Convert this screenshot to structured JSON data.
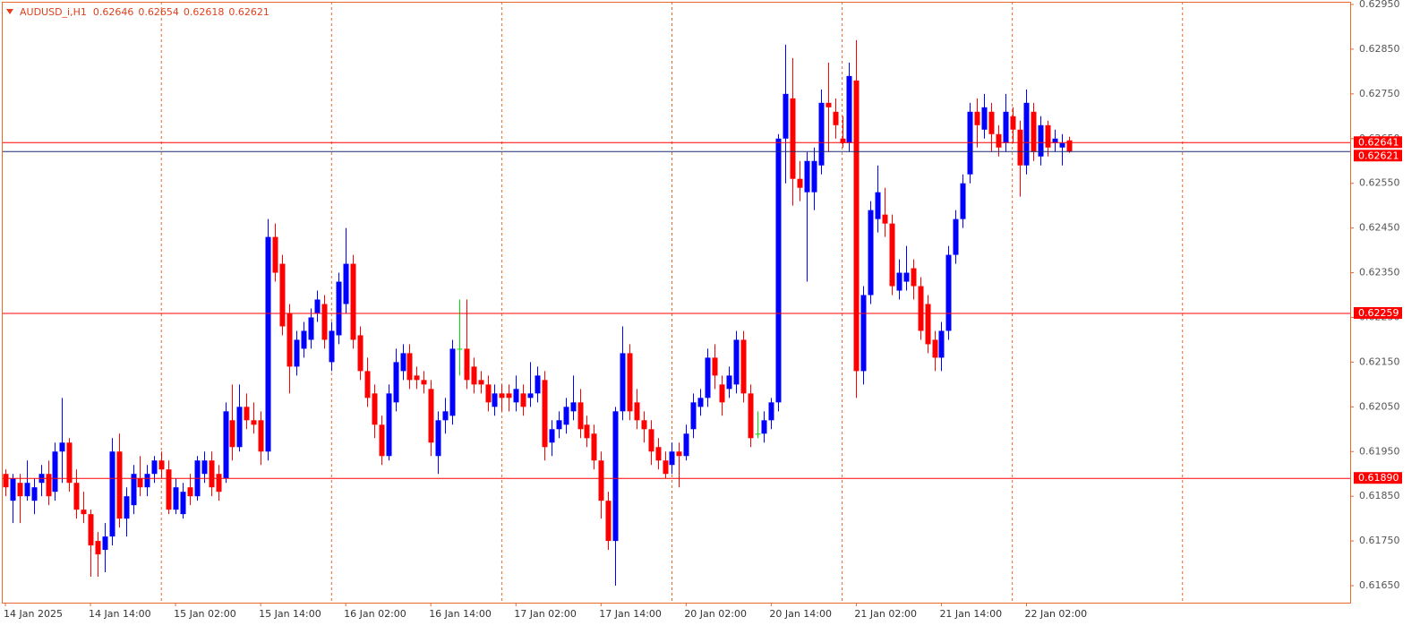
{
  "chart_data": {
    "type": "candlestick",
    "symbol": "AUDUSD_i,H1",
    "categories": [
      "14 Jan 2025",
      null,
      null,
      null,
      null,
      null,
      null,
      null,
      null,
      null,
      null,
      null,
      "14 Jan 14:00",
      null,
      null,
      null,
      null,
      null,
      null,
      null,
      null,
      null,
      null,
      null,
      "15 Jan 02:00",
      null,
      null,
      null,
      null,
      null,
      null,
      null,
      null,
      null,
      null,
      null,
      "15 Jan 14:00",
      null,
      null,
      null,
      null,
      null,
      null,
      null,
      null,
      null,
      null,
      null,
      "16 Jan 02:00",
      null,
      null,
      null,
      null,
      null,
      null,
      null,
      null,
      null,
      null,
      null,
      "16 Jan 14:00",
      null,
      null,
      null,
      null,
      null,
      null,
      null,
      null,
      null,
      null,
      null,
      "17 Jan 02:00",
      null,
      null,
      null,
      null,
      null,
      null,
      null,
      null,
      null,
      null,
      null,
      "17 Jan 14:00",
      null,
      null,
      null,
      null,
      null,
      null,
      null,
      null,
      null,
      null,
      null,
      "20 Jan 02:00",
      null,
      null,
      null,
      null,
      null,
      null,
      null,
      null,
      null,
      null,
      null,
      "20 Jan 14:00",
      null,
      null,
      null,
      null,
      null,
      null,
      null,
      null,
      null,
      null,
      null,
      "21 Jan 02:00",
      null,
      null,
      null,
      null,
      null,
      null,
      null,
      null,
      null,
      null,
      null,
      "21 Jan 14:00",
      null,
      null,
      null,
      null,
      null,
      null,
      null,
      null,
      null,
      null,
      null,
      "22 Jan 02:00",
      null,
      null,
      null,
      null,
      null,
      null
    ],
    "open": [
      0.619,
      0.6184,
      0.6188,
      0.6185,
      0.6184,
      0.6188,
      0.619,
      0.6186,
      0.6195,
      0.6197,
      0.6188,
      0.6182,
      0.6181,
      0.6175,
      0.6173,
      0.6176,
      0.6195,
      0.618,
      0.6183,
      0.6189,
      0.6187,
      0.619,
      0.6193,
      0.6191,
      0.6182,
      0.6181,
      0.6187,
      0.6185,
      0.619,
      0.6193,
      0.619,
      0.6189,
      0.6202,
      0.6196,
      0.6205,
      0.6202,
      0.6202,
      0.6195,
      0.6243,
      0.6237,
      0.6226,
      0.6214,
      0.6218,
      0.622,
      0.6226,
      0.6228,
      0.6215,
      0.6221,
      0.6228,
      0.6237,
      0.6221,
      0.6213,
      0.6208,
      0.6201,
      0.6194,
      0.6206,
      0.6213,
      0.6217,
      0.6212,
      0.6211,
      0.6209,
      0.6194,
      0.6202,
      0.6203,
      0.6218,
      0.6218,
      0.6214,
      0.6211,
      0.621,
      0.6205,
      0.6208,
      0.6208,
      0.6206,
      0.6208,
      0.6207,
      0.6208,
      0.6211,
      0.6197,
      0.62,
      0.6201,
      0.6204,
      0.6206,
      0.6201,
      0.6199,
      0.6193,
      0.6184,
      0.6175,
      0.6204,
      0.6217,
      0.6206,
      0.6202,
      0.62,
      0.6196,
      0.6193,
      0.6192,
      0.6195,
      0.6194,
      0.62,
      0.6205,
      0.6207,
      0.6216,
      0.621,
      0.6209,
      0.621,
      0.622,
      0.6208,
      0.6199,
      0.6199,
      0.6202,
      0.6206,
      0.6265,
      0.6274,
      0.6256,
      0.6253,
      0.6253,
      0.6259,
      0.6273,
      0.6271,
      0.6265,
      0.6264,
      0.6278,
      0.6213,
      0.623,
      0.6247,
      0.6248,
      0.6246,
      0.6231,
      0.6233,
      0.6236,
      0.6232,
      0.6228,
      0.622,
      0.6216,
      0.6222,
      0.6239,
      0.6247,
      0.6257,
      0.6271,
      0.6267,
      0.6271,
      0.6266,
      0.6264,
      0.627,
      0.6267,
      0.6259,
      0.6271,
      0.6261,
      0.6268,
      0.6264,
      0.6263,
      0.62646
    ],
    "high": [
      0.6191,
      0.619,
      0.619,
      0.6193,
      0.6189,
      0.6192,
      0.6193,
      0.6197,
      0.6207,
      0.6198,
      0.6191,
      0.6186,
      0.6182,
      0.6177,
      0.6179,
      0.6198,
      0.6199,
      0.6187,
      0.6192,
      0.6194,
      0.6192,
      0.6194,
      0.6195,
      0.6193,
      0.6189,
      0.6188,
      0.619,
      0.6194,
      0.6195,
      0.6195,
      0.6192,
      0.6206,
      0.621,
      0.621,
      0.6208,
      0.6206,
      0.6204,
      0.6247,
      0.6246,
      0.6239,
      0.6228,
      0.6222,
      0.6224,
      0.6227,
      0.6231,
      0.623,
      0.6224,
      0.6235,
      0.6245,
      0.6239,
      0.6223,
      0.6216,
      0.621,
      0.6203,
      0.621,
      0.6218,
      0.6219,
      0.6219,
      0.6214,
      0.6213,
      0.6211,
      0.6204,
      0.6207,
      0.622,
      0.6229,
      0.6229,
      0.6216,
      0.6213,
      0.6212,
      0.621,
      0.621,
      0.621,
      0.6212,
      0.621,
      0.6215,
      0.6214,
      0.6213,
      0.6202,
      0.6204,
      0.6207,
      0.6212,
      0.6209,
      0.6203,
      0.6201,
      0.6195,
      0.6186,
      0.6205,
      0.6223,
      0.6219,
      0.6209,
      0.6204,
      0.6202,
      0.6198,
      0.6195,
      0.6197,
      0.6197,
      0.6201,
      0.6208,
      0.6209,
      0.6218,
      0.6219,
      0.6212,
      0.6214,
      0.6222,
      0.6222,
      0.621,
      0.6204,
      0.6204,
      0.6207,
      0.6266,
      0.6286,
      0.6283,
      0.626,
      0.6262,
      0.6263,
      0.6276,
      0.6282,
      0.6274,
      0.627,
      0.6282,
      0.6287,
      0.6232,
      0.6251,
      0.6259,
      0.6254,
      0.6248,
      0.6238,
      0.6241,
      0.6238,
      0.6234,
      0.623,
      0.6222,
      0.6224,
      0.6241,
      0.6249,
      0.6257,
      0.6273,
      0.6274,
      0.6275,
      0.6273,
      0.6268,
      0.6275,
      0.6272,
      0.6269,
      0.6276,
      0.6273,
      0.627,
      0.6269,
      0.6267,
      0.6266,
      0.62654
    ],
    "low": [
      0.6185,
      0.6179,
      0.6179,
      0.6184,
      0.6181,
      0.6185,
      0.6183,
      0.6184,
      0.6188,
      0.6186,
      0.618,
      0.6179,
      0.6167,
      0.6167,
      0.6168,
      0.6174,
      0.6178,
      0.6176,
      0.6181,
      0.6185,
      0.6185,
      0.6188,
      0.6189,
      0.6181,
      0.6181,
      0.618,
      0.6183,
      0.6184,
      0.6188,
      0.6185,
      0.6184,
      0.6188,
      0.6193,
      0.6195,
      0.62,
      0.6199,
      0.6192,
      0.6193,
      0.6233,
      0.6221,
      0.6208,
      0.6212,
      0.6216,
      0.6218,
      0.6224,
      0.6218,
      0.6213,
      0.6219,
      0.6226,
      0.6218,
      0.6211,
      0.6205,
      0.6198,
      0.6192,
      0.6193,
      0.6204,
      0.6211,
      0.6209,
      0.6209,
      0.6208,
      0.6194,
      0.619,
      0.6199,
      0.6201,
      0.6212,
      0.6209,
      0.6208,
      0.6208,
      0.6204,
      0.6203,
      0.6204,
      0.6204,
      0.6204,
      0.6203,
      0.6205,
      0.6206,
      0.6193,
      0.6194,
      0.6198,
      0.6199,
      0.6202,
      0.6198,
      0.6196,
      0.6191,
      0.618,
      0.6173,
      0.6165,
      0.6202,
      0.6202,
      0.62,
      0.6197,
      0.6192,
      0.6191,
      0.6189,
      0.619,
      0.6187,
      0.6193,
      0.6198,
      0.6203,
      0.6205,
      0.6209,
      0.6203,
      0.6207,
      0.6208,
      0.6206,
      0.6196,
      0.6198,
      0.6197,
      0.62,
      0.6204,
      0.6255,
      0.625,
      0.6251,
      0.6233,
      0.6249,
      0.6257,
      0.6262,
      0.6265,
      0.6263,
      0.6262,
      0.6207,
      0.621,
      0.6228,
      0.6244,
      0.6243,
      0.623,
      0.6229,
      0.6231,
      0.6229,
      0.622,
      0.6217,
      0.6213,
      0.6213,
      0.622,
      0.6237,
      0.6245,
      0.6255,
      0.6263,
      0.6265,
      0.6262,
      0.6261,
      0.6262,
      0.6264,
      0.6252,
      0.6257,
      0.626,
      0.6259,
      0.6261,
      0.6262,
      0.6259,
      0.62618
    ],
    "close": [
      0.6187,
      0.6189,
      0.6185,
      0.6188,
      0.6187,
      0.619,
      0.6185,
      0.6195,
      0.6197,
      0.6188,
      0.6182,
      0.6181,
      0.6174,
      0.6172,
      0.6176,
      0.6195,
      0.618,
      0.6185,
      0.619,
      0.6187,
      0.619,
      0.6193,
      0.6191,
      0.6182,
      0.6187,
      0.6186,
      0.6185,
      0.6193,
      0.6193,
      0.6187,
      0.6186,
      0.6204,
      0.6196,
      0.6205,
      0.6202,
      0.6201,
      0.6195,
      0.6243,
      0.6235,
      0.6223,
      0.6214,
      0.622,
      0.6222,
      0.6225,
      0.6229,
      0.622,
      0.6222,
      0.6233,
      0.6237,
      0.622,
      0.6213,
      0.6207,
      0.6201,
      0.6194,
      0.6208,
      0.6215,
      0.6217,
      0.6211,
      0.6211,
      0.621,
      0.6197,
      0.6202,
      0.6204,
      0.6218,
      0.6218,
      0.6211,
      0.621,
      0.621,
      0.6206,
      0.6208,
      0.6207,
      0.6207,
      0.6209,
      0.6205,
      0.6208,
      0.6212,
      0.6196,
      0.62,
      0.6202,
      0.6205,
      0.6206,
      0.62,
      0.6198,
      0.6193,
      0.6184,
      0.6175,
      0.6204,
      0.6217,
      0.6204,
      0.6202,
      0.62,
      0.6195,
      0.6193,
      0.619,
      0.6195,
      0.6194,
      0.6199,
      0.6206,
      0.6207,
      0.6216,
      0.6212,
      0.6206,
      0.6212,
      0.622,
      0.6208,
      0.6198,
      0.6199,
      0.6202,
      0.6206,
      0.6265,
      0.6275,
      0.6256,
      0.6254,
      0.626,
      0.626,
      0.6273,
      0.6272,
      0.6268,
      0.6264,
      0.6279,
      0.6213,
      0.623,
      0.6249,
      0.6253,
      0.6246,
      0.6232,
      0.6235,
      0.6235,
      0.6232,
      0.6222,
      0.6219,
      0.6216,
      0.6222,
      0.6239,
      0.6247,
      0.6255,
      0.6271,
      0.6268,
      0.6272,
      0.6266,
      0.6263,
      0.6271,
      0.6267,
      0.6259,
      0.6273,
      0.6262,
      0.6268,
      0.6263,
      0.6265,
      0.6264,
      0.62621
    ],
    "up_color": "#0000ff",
    "down_color": "#ff0000",
    "doji_color": "#00e000",
    "bid_color": "#1c2a70",
    "ylim": [
      0.61612,
      0.62956
    ],
    "yticks": [
      {
        "value": 0.6295,
        "label": "0.62950"
      },
      {
        "value": 0.6285,
        "label": "0.62850"
      },
      {
        "value": 0.6275,
        "label": "0.62750"
      },
      {
        "value": 0.6265,
        "label": "0.62650"
      },
      {
        "value": 0.6255,
        "label": "0.62550"
      },
      {
        "value": 0.6245,
        "label": "0.62450"
      },
      {
        "value": 0.6235,
        "label": "0.62350"
      },
      {
        "value": 0.6225,
        "label": "0.62250"
      },
      {
        "value": 0.6215,
        "label": "0.62150"
      },
      {
        "value": 0.6205,
        "label": "0.62050"
      },
      {
        "value": 0.6195,
        "label": "0.61950"
      },
      {
        "value": 0.6185,
        "label": "0.61850"
      },
      {
        "value": 0.6175,
        "label": "0.61750"
      },
      {
        "value": 0.6165,
        "label": "0.61650"
      }
    ],
    "levels": [
      {
        "value": 0.62641,
        "color": "#ff0000"
      },
      {
        "value": 0.62259,
        "color": "#ff0000"
      },
      {
        "value": 0.6189,
        "label": "0.61890",
        "color": "#ff0000"
      }
    ],
    "period_separators": true
  }
}
